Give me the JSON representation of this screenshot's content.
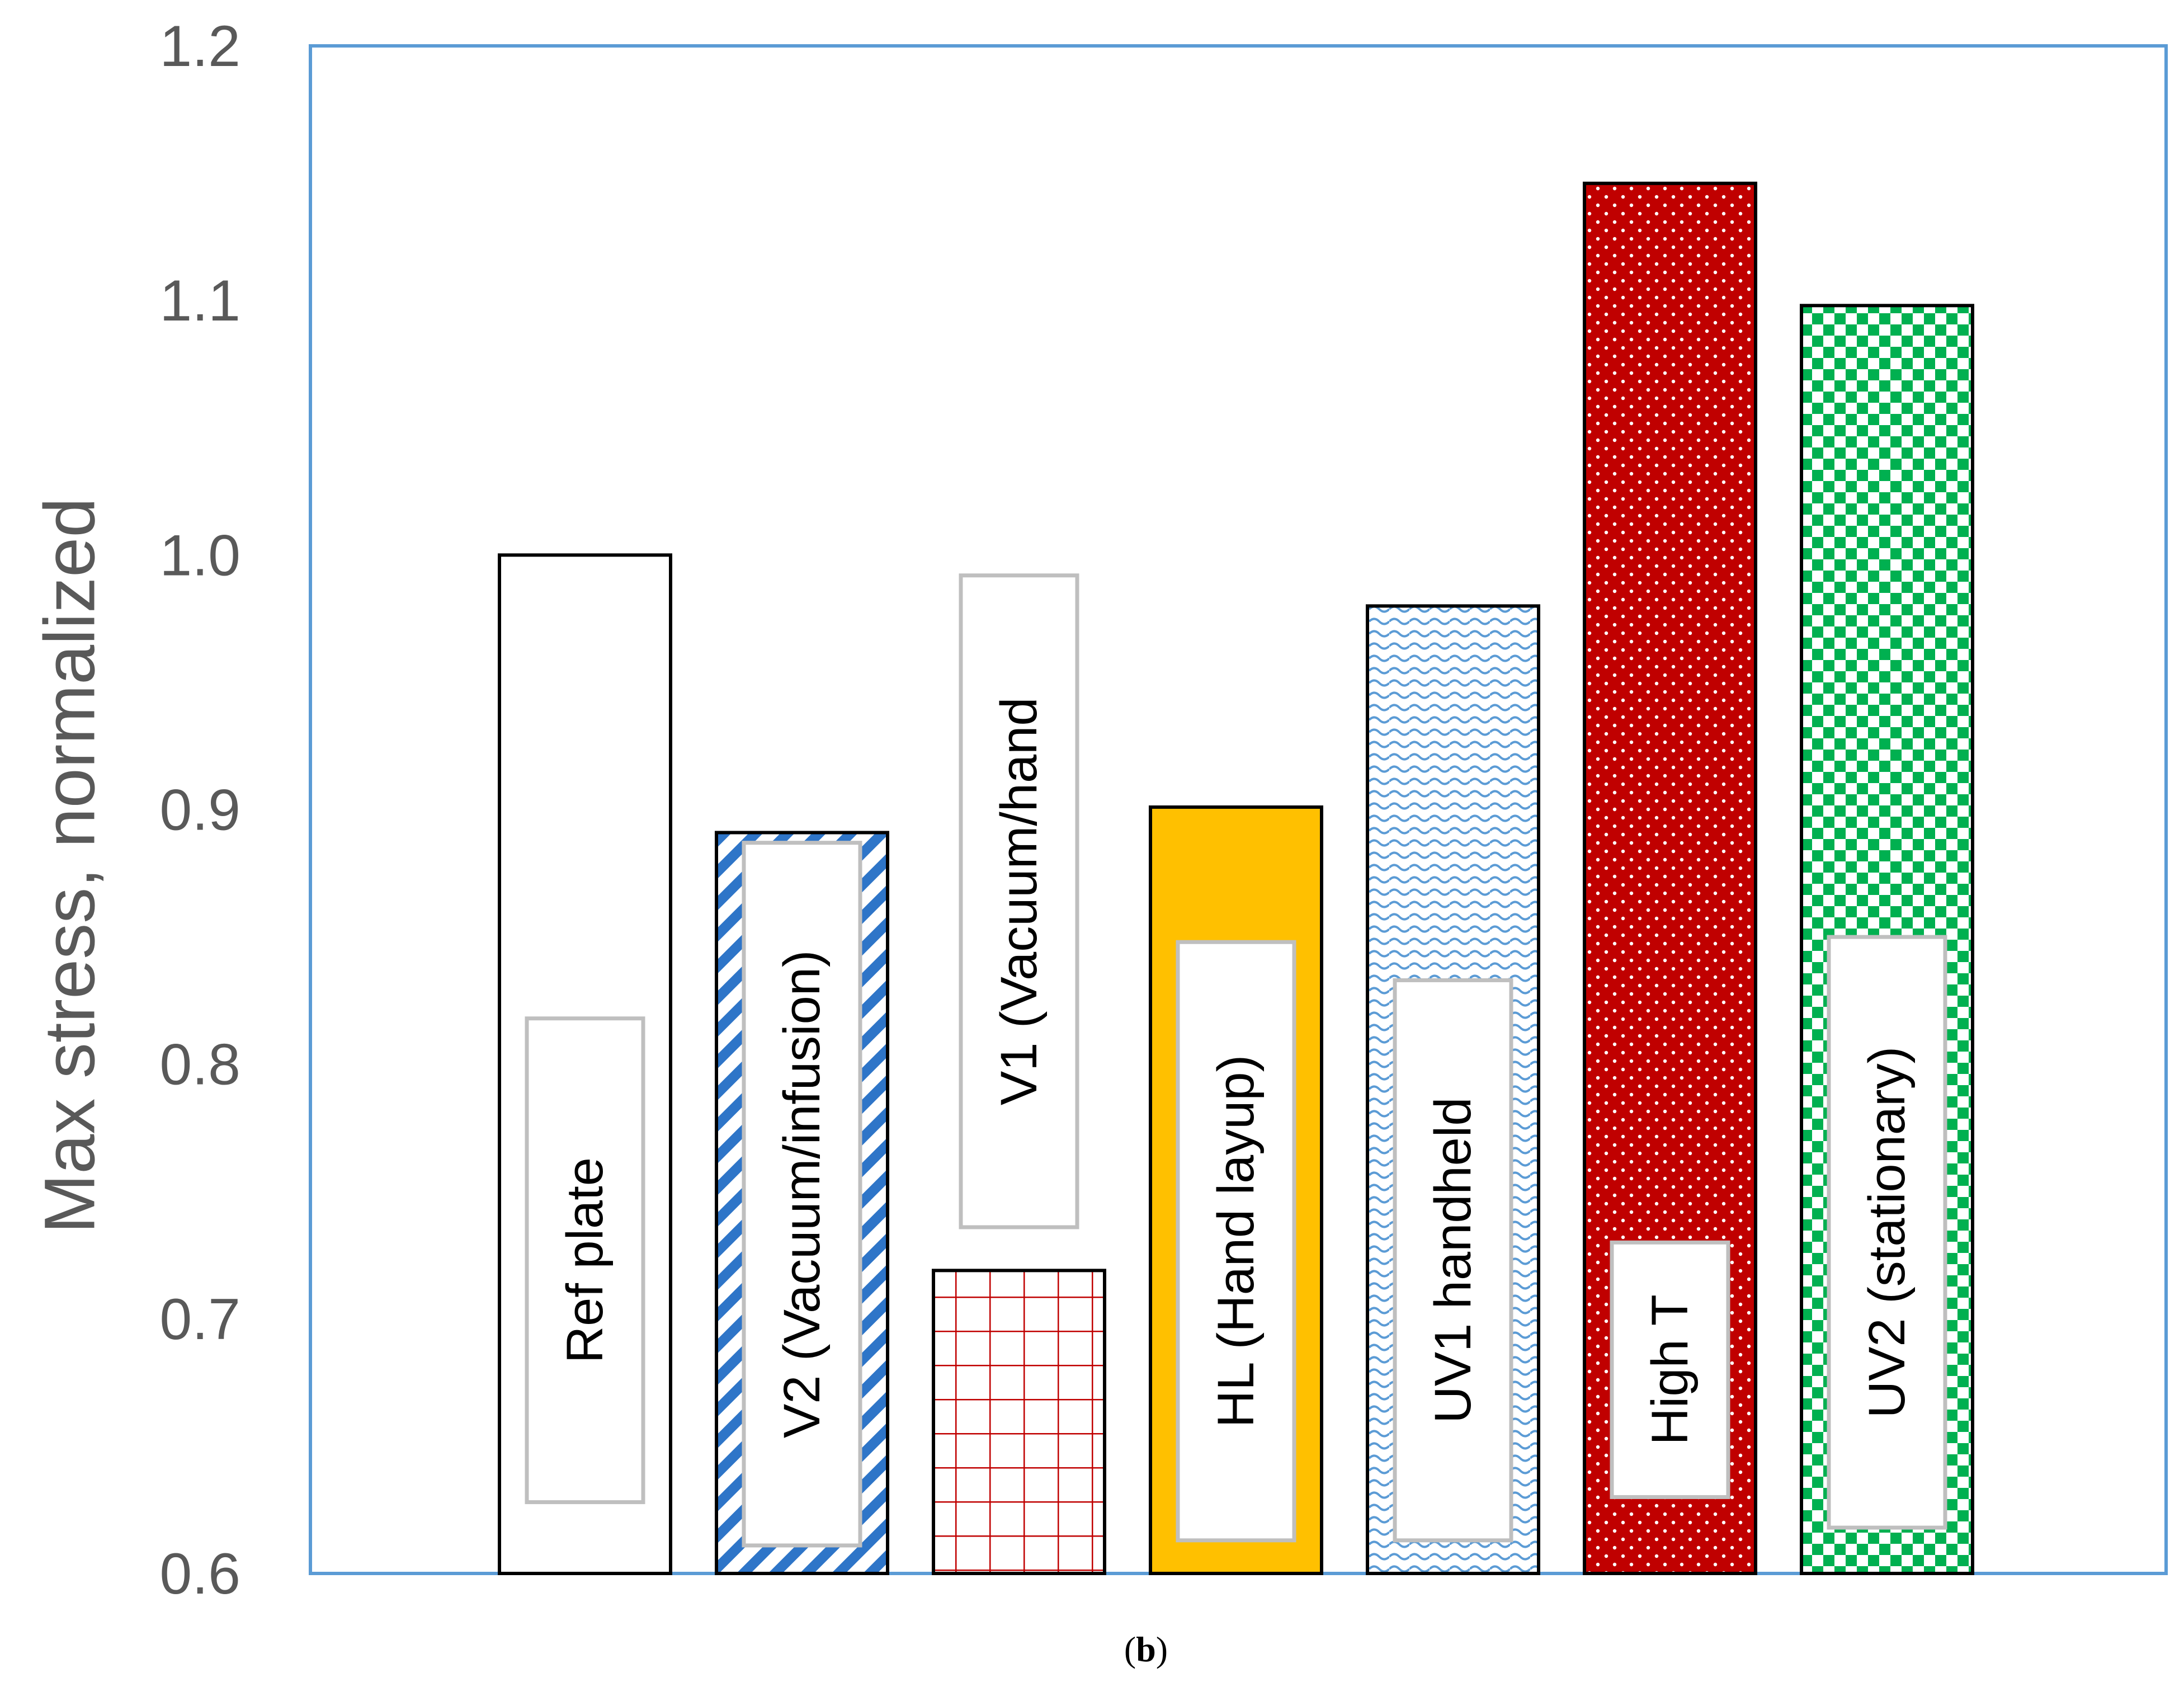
{
  "chart_data": {
    "type": "bar",
    "title": "",
    "xlabel": "",
    "ylabel": "Max stress, normalized",
    "ylim": [
      0.6,
      1.2
    ],
    "yticks": [
      "0.6",
      "0.7",
      "0.8",
      "0.9",
      "1.0",
      "1.1",
      "1.2"
    ],
    "grid": false,
    "legend": "none",
    "categories": [
      "Ref plate",
      "V2 (Vacuum/infusion)",
      "V1 (Vacuum/hand",
      "HL (Hand layup)",
      "UV1 handheld",
      "High T",
      "UV2 (stationary)"
    ],
    "values": [
      1.0,
      0.891,
      0.719,
      0.901,
      0.98,
      1.146,
      1.098
    ],
    "label_ranges": [
      [
        0.628,
        0.818
      ],
      [
        0.611,
        0.887
      ],
      [
        0.736,
        0.992
      ],
      [
        0.613,
        0.848
      ],
      [
        0.613,
        0.833
      ],
      [
        0.63,
        0.73
      ],
      [
        0.618,
        0.85
      ]
    ],
    "patterns": [
      "solid-white",
      "diagonal-stripes",
      "grid",
      "solid-gold",
      "waves",
      "dots",
      "checkerboard"
    ],
    "colors": {
      "frame": "#5B9BD5",
      "outline": "#000000",
      "label_box_border": "#BFBFBF",
      "stripe_blue": "#2E75C8",
      "grid_red": "#C00000",
      "gold": "#FFC000",
      "wave_blue": "#5B9BD5",
      "dark_red": "#C00000",
      "green": "#00B050",
      "tick_text": "#595959"
    }
  },
  "caption": {
    "open": "(",
    "letter": "b",
    "close": ")"
  }
}
